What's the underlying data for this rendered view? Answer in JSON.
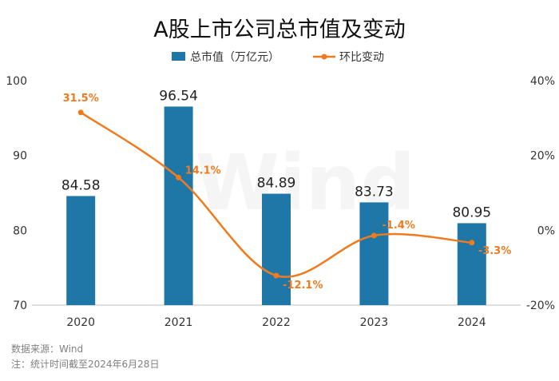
{
  "chart_data": {
    "type": "bar+line",
    "title": "A股上市公司总市值及变动",
    "categories": [
      "2020",
      "2021",
      "2022",
      "2023",
      "2024"
    ],
    "series": [
      {
        "name": "总市值（万亿元）",
        "type": "bar",
        "axis": "left",
        "values": [
          84.58,
          96.54,
          84.89,
          83.73,
          80.95
        ],
        "labels": [
          "84.58",
          "96.54",
          "84.89",
          "83.73",
          "80.95"
        ],
        "color": "#1f77a8"
      },
      {
        "name": "环比变动",
        "type": "line",
        "axis": "right",
        "values": [
          31.5,
          14.1,
          -12.1,
          -1.4,
          -3.3
        ],
        "labels": [
          "31.5%",
          "14.1%",
          "-12.1%",
          "-1.4%",
          "-3.3%"
        ],
        "color": "#f07b1f"
      }
    ],
    "y_left": {
      "ylim": [
        70,
        100
      ],
      "ticks": [
        "70",
        "80",
        "90",
        "100"
      ]
    },
    "y_right": {
      "ylim": [
        -20,
        40
      ],
      "ticks": [
        "-20%",
        "0%",
        "20%",
        "40%"
      ]
    },
    "legend": "top-center",
    "watermark": "Wind"
  },
  "notes": {
    "source": "数据来源：Wind",
    "cutoff": "注：统计时间截至2024年6月28日"
  }
}
